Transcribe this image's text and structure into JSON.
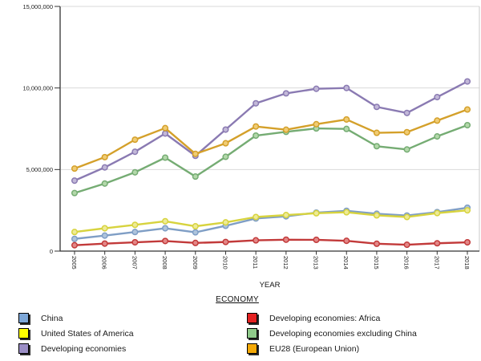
{
  "chart_data": {
    "type": "line",
    "title": "",
    "xlabel": "YEAR",
    "ylabel": "",
    "legend_title": "ECONOMY",
    "legend_position": "bottom",
    "grid": true,
    "ylim": [
      0,
      15000000
    ],
    "yticks": [
      0,
      5000000,
      10000000,
      15000000
    ],
    "categories": [
      "2005",
      "2006",
      "2007",
      "2008",
      "2009",
      "2010",
      "2011",
      "2012",
      "2013",
      "2014",
      "2015",
      "2016",
      "2017",
      "2018"
    ],
    "series": [
      {
        "name": "China",
        "line_color": "#7f9ec5",
        "marker_fill": "#aec4dc",
        "legend_color": "#7da7d8",
        "values": [
          750000,
          950000,
          1170000,
          1400000,
          1150000,
          1550000,
          2000000,
          2130000,
          2360000,
          2470000,
          2290000,
          2180000,
          2390000,
          2660000
        ]
      },
      {
        "name": "United States of America",
        "line_color": "#d7d33e",
        "marker_fill": "#eeeb96",
        "legend_color": "#ffff00",
        "values": [
          1170000,
          1400000,
          1610000,
          1830000,
          1520000,
          1760000,
          2090000,
          2210000,
          2320000,
          2380000,
          2190000,
          2090000,
          2330000,
          2500000
        ]
      },
      {
        "name": "Developing economies",
        "line_color": "#8a7ab2",
        "marker_fill": "#c2b8d8",
        "legend_color": "#9b8ec6",
        "values": [
          4320000,
          5130000,
          6090000,
          7210000,
          5840000,
          7450000,
          9060000,
          9670000,
          9950000,
          10000000,
          8840000,
          8470000,
          9440000,
          10400000
        ]
      },
      {
        "name": "Developing economies: Africa",
        "line_color": "#c23a3a",
        "marker_fill": "#e38787",
        "legend_color": "#e42222",
        "values": [
          360000,
          460000,
          540000,
          620000,
          500000,
          560000,
          660000,
          700000,
          690000,
          630000,
          450000,
          390000,
          480000,
          540000
        ]
      },
      {
        "name": "Developing economies excluding China",
        "line_color": "#75ac73",
        "marker_fill": "#b3d8aa",
        "legend_color": "#8fca8a",
        "values": [
          3560000,
          4140000,
          4830000,
          5730000,
          4570000,
          5780000,
          7080000,
          7310000,
          7520000,
          7490000,
          6430000,
          6230000,
          7030000,
          7720000
        ]
      },
      {
        "name": "EU28 (European Union)",
        "line_color": "#d4a02a",
        "marker_fill": "#f0cc74",
        "legend_color": "#f4a907",
        "values": [
          5060000,
          5760000,
          6830000,
          7540000,
          5960000,
          6610000,
          7640000,
          7440000,
          7780000,
          8070000,
          7250000,
          7290000,
          8000000,
          8680000
        ]
      }
    ],
    "axis_color": "#333333",
    "gridline_color": "#d9d9d9",
    "plot_border_color": "#c9c9c9",
    "tick_label_color": "#222222"
  }
}
